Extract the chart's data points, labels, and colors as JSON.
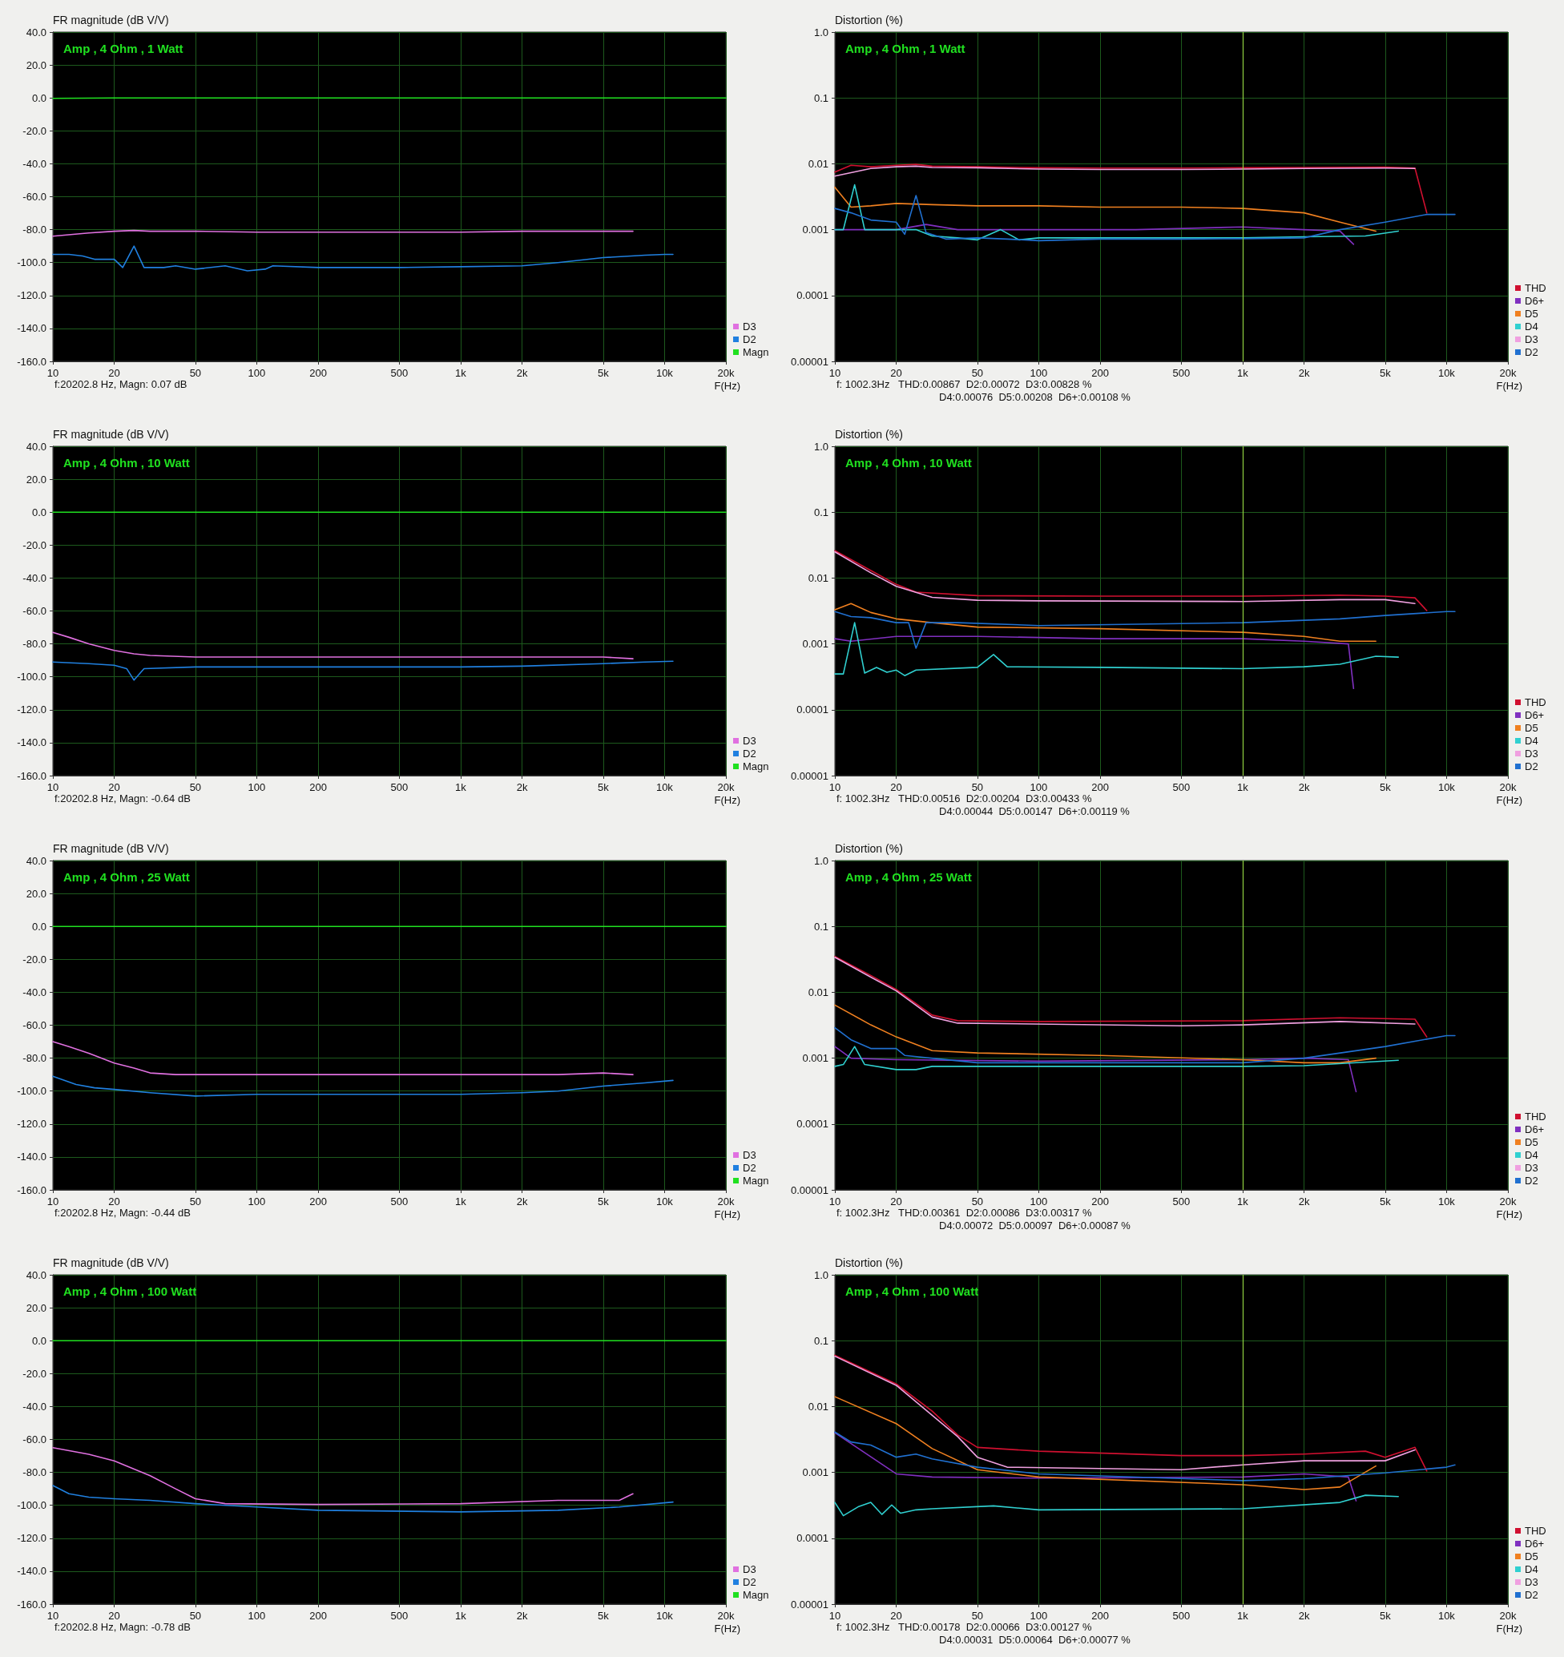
{
  "chart_data": [
    {
      "type": "line",
      "title": "Amp , 4 Ohm , 1 Watt",
      "ylabel": "FR magnitude (dB V/V)",
      "xlabel": "F(Hz)",
      "annotations": [
        "f:20202.8 Hz, Magn: 0.07 dB"
      ],
      "log": "x",
      "grid": true,
      "legend": "bottom right",
      "marker": "none",
      "line_style": "solid",
      "xlim": [
        10,
        20000
      ],
      "ylim": [
        -160,
        40
      ],
      "xticks": [
        10,
        20,
        50,
        100,
        200,
        500,
        {
          "value": 1000,
          "label": "1k"
        },
        {
          "value": 2000,
          "label": "2k"
        },
        {
          "value": 5000,
          "label": "5k"
        },
        {
          "value": 10000,
          "label": "10k"
        },
        {
          "value": 20000,
          "label": "20k"
        }
      ],
      "yticks": [
        {
          "value": 40,
          "label": "40.0"
        },
        {
          "value": 20,
          "label": "20.0"
        },
        {
          "value": 0,
          "label": "0.0"
        },
        {
          "value": -20,
          "label": "-20.0"
        },
        {
          "value": -40,
          "label": "-40.0"
        },
        {
          "value": -60,
          "label": "-60.0"
        },
        {
          "value": -80,
          "label": "-80.0"
        },
        {
          "value": -100,
          "label": "-100.0"
        },
        {
          "value": -120,
          "label": "-120.0"
        },
        {
          "value": -140,
          "label": "-140.0"
        },
        {
          "value": -160,
          "label": "-160.0"
        }
      ],
      "series": [
        {
          "name": "D3",
          "color": "#e070e0",
          "x": [
            10,
            15,
            20,
            25,
            30,
            50,
            100,
            200,
            500,
            1000,
            2000,
            5000,
            7000
          ],
          "values": [
            -84,
            -82,
            -81,
            -80.5,
            -81,
            -81,
            -81.5,
            -81.5,
            -81.5,
            -81.5,
            -81,
            -81,
            -81
          ]
        },
        {
          "name": "D2",
          "color": "#2080e0",
          "x": [
            10,
            12,
            14,
            16,
            20,
            22,
            25,
            28,
            35,
            40,
            50,
            70,
            90,
            110,
            120,
            200,
            500,
            1000,
            2000,
            3000,
            5000,
            8000,
            10000,
            11000
          ],
          "values": [
            -95,
            -95,
            -96,
            -98,
            -98,
            -103,
            -90,
            -103,
            -103,
            -102,
            -104,
            -102,
            -105,
            -104,
            -102,
            -103,
            -103,
            -102.5,
            -102,
            -100,
            -97,
            -95.5,
            -95,
            -95
          ]
        },
        {
          "name": "Magn",
          "color": "#20e020",
          "x": [
            10,
            20,
            100,
            1000,
            10000,
            20000
          ],
          "values": [
            -0.3,
            0,
            0,
            0,
            0,
            0
          ]
        }
      ]
    },
    {
      "type": "line",
      "title": "Amp , 4 Ohm , 1 Watt",
      "ylabel": "Distortion (%)",
      "xlabel": "F(Hz)",
      "annotations": [
        "f: 1002.3Hz   THD:0.00867  D2:0.00072  D3:0.00828 %",
        "D4:0.00076  D5:0.00208  D6+:0.00108 %"
      ],
      "log": "xy",
      "grid": true,
      "legend": "bottom right",
      "marker": "none",
      "line_style": "solid",
      "xlim": [
        10,
        20000
      ],
      "ylim": [
        1e-05,
        1
      ],
      "xticks": [
        10,
        20,
        50,
        100,
        200,
        500,
        {
          "value": 1000,
          "label": "1k"
        },
        {
          "value": 2000,
          "label": "2k"
        },
        {
          "value": 5000,
          "label": "5k"
        },
        {
          "value": 10000,
          "label": "10k"
        },
        {
          "value": 20000,
          "label": "20k"
        }
      ],
      "yticks": [
        {
          "value": 1,
          "label": "1.0"
        },
        0.1,
        0.01,
        0.001,
        0.0001,
        {
          "value": 1e-05,
          "label": "0.00001"
        }
      ],
      "ref_lines": [
        {
          "axis": "x",
          "value": 1000,
          "color": "#90d040"
        }
      ],
      "series": [
        {
          "name": "THD",
          "color": "#d01030",
          "x": [
            10,
            12,
            15,
            20,
            25,
            30,
            50,
            100,
            200,
            500,
            1000,
            2000,
            5000,
            7000,
            8000
          ],
          "values": [
            0.0075,
            0.0095,
            0.009,
            0.0095,
            0.0098,
            0.0092,
            0.009,
            0.0087,
            0.0086,
            0.0086,
            0.0087,
            0.0088,
            0.0089,
            0.0086,
            0.0018
          ]
        },
        {
          "name": "D6+",
          "color": "#8030c0",
          "x": [
            10,
            15,
            20,
            28,
            40,
            100,
            300,
            1000,
            2000,
            3000,
            3500
          ],
          "values": [
            0.001,
            0.001,
            0.001,
            0.0012,
            0.001,
            0.001,
            0.001,
            0.0011,
            0.001,
            0.00095,
            0.0006
          ]
        },
        {
          "name": "D5",
          "color": "#f08020",
          "x": [
            10,
            12,
            15,
            20,
            30,
            50,
            100,
            200,
            500,
            1000,
            2000,
            3000,
            4500
          ],
          "values": [
            0.0044,
            0.0022,
            0.0023,
            0.0025,
            0.0024,
            0.0023,
            0.0023,
            0.0022,
            0.0022,
            0.0021,
            0.0018,
            0.0013,
            0.00095
          ]
        },
        {
          "name": "D4",
          "color": "#30d0d0",
          "x": [
            10,
            11,
            12.5,
            14,
            20,
            22,
            25,
            30,
            40,
            50,
            65,
            80,
            100,
            200,
            500,
            1000,
            2000,
            4000,
            5800
          ],
          "values": [
            0.001,
            0.001,
            0.0048,
            0.001,
            0.001,
            0.001,
            0.001,
            0.0008,
            0.00075,
            0.0007,
            0.001,
            0.0007,
            0.00075,
            0.00075,
            0.00075,
            0.00075,
            0.00078,
            0.0008,
            0.00095
          ]
        },
        {
          "name": "D3",
          "color": "#f0a0e0",
          "x": [
            10,
            15,
            20,
            25,
            30,
            50,
            100,
            200,
            500,
            1000,
            2000,
            5000,
            7000
          ],
          "values": [
            0.0065,
            0.0085,
            0.009,
            0.0092,
            0.0088,
            0.0087,
            0.0083,
            0.0082,
            0.0082,
            0.0083,
            0.0085,
            0.0086,
            0.0085
          ]
        },
        {
          "name": "D2",
          "color": "#2070d0",
          "x": [
            10,
            12,
            15,
            20,
            22,
            25,
            28,
            35,
            50,
            70,
            100,
            200,
            500,
            1000,
            2000,
            3000,
            5000,
            8000,
            10000,
            11000
          ],
          "values": [
            0.0021,
            0.0018,
            0.0014,
            0.0013,
            0.00085,
            0.0033,
            0.0009,
            0.00072,
            0.00075,
            0.00072,
            0.00068,
            0.00072,
            0.00072,
            0.00073,
            0.00075,
            0.001,
            0.0013,
            0.0017,
            0.0017,
            0.0017
          ]
        }
      ]
    },
    {
      "type": "line",
      "title": "Amp , 4 Ohm , 10 Watt",
      "ylabel": "FR magnitude (dB V/V)",
      "xlabel": "F(Hz)",
      "annotations": [
        "f:20202.8 Hz, Magn: -0.64 dB"
      ],
      "log": "x",
      "grid": true,
      "legend": "bottom right",
      "marker": "none",
      "line_style": "solid",
      "xlim": [
        10,
        20000
      ],
      "ylim": [
        -160,
        40
      ],
      "xticks": [
        10,
        20,
        50,
        100,
        200,
        500,
        {
          "value": 1000,
          "label": "1k"
        },
        {
          "value": 2000,
          "label": "2k"
        },
        {
          "value": 5000,
          "label": "5k"
        },
        {
          "value": 10000,
          "label": "10k"
        },
        {
          "value": 20000,
          "label": "20k"
        }
      ],
      "yticks": [
        {
          "value": 40,
          "label": "40.0"
        },
        {
          "value": 20,
          "label": "20.0"
        },
        {
          "value": 0,
          "label": "0.0"
        },
        {
          "value": -20,
          "label": "-20.0"
        },
        {
          "value": -40,
          "label": "-40.0"
        },
        {
          "value": -60,
          "label": "-60.0"
        },
        {
          "value": -80,
          "label": "-80.0"
        },
        {
          "value": -100,
          "label": "-100.0"
        },
        {
          "value": -120,
          "label": "-120.0"
        },
        {
          "value": -140,
          "label": "-140.0"
        },
        {
          "value": -160,
          "label": "-160.0"
        }
      ],
      "series": [
        {
          "name": "D3",
          "color": "#e070e0",
          "x": [
            10,
            12,
            15,
            20,
            25,
            30,
            50,
            100,
            500,
            1000,
            2000,
            5000,
            7000
          ],
          "values": [
            -73,
            -76,
            -80,
            -84,
            -86,
            -87,
            -88,
            -88,
            -88,
            -88,
            -88,
            -88,
            -89
          ]
        },
        {
          "name": "D2",
          "color": "#2080e0",
          "x": [
            10,
            15,
            20,
            23,
            25,
            28,
            50,
            100,
            500,
            1000,
            2000,
            5000,
            8000,
            11000
          ],
          "values": [
            -91,
            -92,
            -93,
            -95,
            -102,
            -95,
            -94,
            -94,
            -94,
            -94,
            -93.5,
            -92,
            -91,
            -90.5
          ]
        },
        {
          "name": "Magn",
          "color": "#20e020",
          "x": [
            10,
            100,
            1000,
            10000,
            20000
          ],
          "values": [
            0,
            0,
            0,
            0,
            0
          ]
        }
      ]
    },
    {
      "type": "line",
      "title": "Amp , 4 Ohm , 10 Watt",
      "ylabel": "Distortion (%)",
      "xlabel": "F(Hz)",
      "annotations": [
        "f: 1002.3Hz   THD:0.00516  D2:0.00204  D3:0.00433 %",
        "D4:0.00044  D5:0.00147  D6+:0.00119 %"
      ],
      "log": "xy",
      "grid": true,
      "legend": "bottom right",
      "marker": "none",
      "line_style": "solid",
      "xlim": [
        10,
        20000
      ],
      "ylim": [
        1e-05,
        1
      ],
      "xticks": [
        10,
        20,
        50,
        100,
        200,
        500,
        {
          "value": 1000,
          "label": "1k"
        },
        {
          "value": 2000,
          "label": "2k"
        },
        {
          "value": 5000,
          "label": "5k"
        },
        {
          "value": 10000,
          "label": "10k"
        },
        {
          "value": 20000,
          "label": "20k"
        }
      ],
      "yticks": [
        {
          "value": 1,
          "label": "1.0"
        },
        0.1,
        0.01,
        0.001,
        0.0001,
        {
          "value": 1e-05,
          "label": "0.00001"
        }
      ],
      "ref_lines": [
        {
          "axis": "x",
          "value": 1000,
          "color": "#90d040"
        }
      ],
      "series": [
        {
          "name": "THD",
          "color": "#d01030",
          "x": [
            10,
            15,
            20,
            25,
            50,
            200,
            1000,
            3000,
            5000,
            7000,
            8000
          ],
          "values": [
            0.026,
            0.013,
            0.008,
            0.0061,
            0.0054,
            0.0053,
            0.0053,
            0.0055,
            0.0053,
            0.005,
            0.0032
          ]
        },
        {
          "name": "D6+",
          "color": "#8030c0",
          "x": [
            10,
            12,
            20,
            50,
            200,
            1000,
            2000,
            3300,
            3500
          ],
          "values": [
            0.0012,
            0.0011,
            0.0013,
            0.0013,
            0.0012,
            0.0012,
            0.0011,
            0.001,
            0.00021
          ]
        },
        {
          "name": "D5",
          "color": "#f08020",
          "x": [
            10,
            12,
            15,
            20,
            30,
            50,
            200,
            1000,
            2000,
            3000,
            4500
          ],
          "values": [
            0.0033,
            0.0041,
            0.003,
            0.0024,
            0.0021,
            0.0018,
            0.0017,
            0.0015,
            0.0013,
            0.0011,
            0.0011
          ]
        },
        {
          "name": "D4",
          "color": "#30d0d0",
          "x": [
            10,
            11,
            12.5,
            14,
            16,
            18,
            20,
            22,
            25,
            50,
            60,
            70,
            200,
            1000,
            2000,
            3000,
            4500,
            5800
          ],
          "values": [
            0.00035,
            0.00035,
            0.0021,
            0.00036,
            0.00044,
            0.00037,
            0.0004,
            0.00033,
            0.0004,
            0.00044,
            0.00069,
            0.00045,
            0.00044,
            0.00042,
            0.00045,
            0.00049,
            0.00065,
            0.00063
          ]
        },
        {
          "name": "D3",
          "color": "#f0a0e0",
          "x": [
            10,
            15,
            20,
            30,
            50,
            100,
            1000,
            3000,
            5000,
            7000
          ],
          "values": [
            0.025,
            0.012,
            0.0075,
            0.0051,
            0.0046,
            0.0045,
            0.0044,
            0.0047,
            0.0047,
            0.0041
          ]
        },
        {
          "name": "D2",
          "color": "#2070d0",
          "x": [
            10,
            12,
            15,
            20,
            23,
            25,
            28,
            40,
            100,
            1000,
            3000,
            5000,
            10000,
            11000
          ],
          "values": [
            0.0031,
            0.0026,
            0.0025,
            0.0021,
            0.0021,
            0.00086,
            0.0021,
            0.0021,
            0.0019,
            0.0021,
            0.0024,
            0.0027,
            0.0031,
            0.0031
          ]
        }
      ]
    },
    {
      "type": "line",
      "title": "Amp , 4 Ohm , 25 Watt",
      "ylabel": "FR magnitude (dB V/V)",
      "xlabel": "F(Hz)",
      "annotations": [
        "f:20202.8 Hz, Magn: -0.44 dB"
      ],
      "log": "x",
      "grid": true,
      "legend": "bottom right",
      "marker": "none",
      "line_style": "solid",
      "xlim": [
        10,
        20000
      ],
      "ylim": [
        -160,
        40
      ],
      "xticks": [
        10,
        20,
        50,
        100,
        200,
        500,
        {
          "value": 1000,
          "label": "1k"
        },
        {
          "value": 2000,
          "label": "2k"
        },
        {
          "value": 5000,
          "label": "5k"
        },
        {
          "value": 10000,
          "label": "10k"
        },
        {
          "value": 20000,
          "label": "20k"
        }
      ],
      "yticks": [
        {
          "value": 40,
          "label": "40.0"
        },
        {
          "value": 20,
          "label": "20.0"
        },
        {
          "value": 0,
          "label": "0.0"
        },
        {
          "value": -20,
          "label": "-20.0"
        },
        {
          "value": -40,
          "label": "-40.0"
        },
        {
          "value": -60,
          "label": "-60.0"
        },
        {
          "value": -80,
          "label": "-80.0"
        },
        {
          "value": -100,
          "label": "-100.0"
        },
        {
          "value": -120,
          "label": "-120.0"
        },
        {
          "value": -140,
          "label": "-140.0"
        },
        {
          "value": -160,
          "label": "-160.0"
        }
      ],
      "series": [
        {
          "name": "D3",
          "color": "#e070e0",
          "x": [
            10,
            12,
            15,
            20,
            25,
            30,
            40,
            100,
            1000,
            3000,
            5000,
            7000
          ],
          "values": [
            -70,
            -73,
            -77,
            -83,
            -86,
            -89,
            -90,
            -90,
            -90,
            -90,
            -89,
            -90
          ]
        },
        {
          "name": "D2",
          "color": "#2080e0",
          "x": [
            10,
            13,
            16,
            20,
            30,
            50,
            100,
            500,
            1000,
            2000,
            3000,
            5000,
            8000,
            11000
          ],
          "values": [
            -91,
            -96,
            -98,
            -99,
            -101,
            -103,
            -102,
            -102,
            -102,
            -101,
            -100,
            -97,
            -95,
            -93.5
          ]
        },
        {
          "name": "Magn",
          "color": "#20e020",
          "x": [
            10,
            100,
            1000,
            10000,
            20000
          ],
          "values": [
            0,
            0,
            0,
            0,
            0
          ]
        }
      ]
    },
    {
      "type": "line",
      "title": "Amp , 4 Ohm , 25 Watt",
      "ylabel": "Distortion (%)",
      "xlabel": "F(Hz)",
      "annotations": [
        "f: 1002.3Hz   THD:0.00361  D2:0.00086  D3:0.00317 %",
        "D4:0.00072  D5:0.00097  D6+:0.00087 %"
      ],
      "log": "xy",
      "grid": true,
      "legend": "bottom right",
      "marker": "none",
      "line_style": "solid",
      "xlim": [
        10,
        20000
      ],
      "ylim": [
        1e-05,
        1
      ],
      "xticks": [
        10,
        20,
        50,
        100,
        200,
        500,
        {
          "value": 1000,
          "label": "1k"
        },
        {
          "value": 2000,
          "label": "2k"
        },
        {
          "value": 5000,
          "label": "5k"
        },
        {
          "value": 10000,
          "label": "10k"
        },
        {
          "value": 20000,
          "label": "20k"
        }
      ],
      "yticks": [
        {
          "value": 1,
          "label": "1.0"
        },
        0.1,
        0.01,
        0.001,
        0.0001,
        {
          "value": 1e-05,
          "label": "0.00001"
        }
      ],
      "ref_lines": [
        {
          "axis": "x",
          "value": 1000,
          "color": "#90d040"
        }
      ],
      "series": [
        {
          "name": "THD",
          "color": "#d01030",
          "x": [
            10,
            15,
            20,
            30,
            40,
            100,
            1000,
            3000,
            7000,
            8000
          ],
          "values": [
            0.035,
            0.018,
            0.011,
            0.0045,
            0.0037,
            0.0036,
            0.0037,
            0.0041,
            0.0039,
            0.0021
          ]
        },
        {
          "name": "D6+",
          "color": "#8030c0",
          "x": [
            10,
            12,
            20,
            100,
            1000,
            2000,
            3300,
            3600
          ],
          "values": [
            0.0015,
            0.001,
            0.00095,
            0.0009,
            0.00095,
            0.001,
            0.00095,
            0.00031
          ]
        },
        {
          "name": "D5",
          "color": "#f08020",
          "x": [
            10,
            15,
            20,
            30,
            50,
            200,
            1000,
            2000,
            3000,
            4500
          ],
          "values": [
            0.0064,
            0.0032,
            0.0021,
            0.0013,
            0.0012,
            0.0011,
            0.00095,
            0.00085,
            0.00085,
            0.001
          ]
        },
        {
          "name": "D4",
          "color": "#30d0d0",
          "x": [
            10,
            11,
            12.5,
            14,
            20,
            25,
            30,
            100,
            1000,
            2000,
            5800
          ],
          "values": [
            0.00075,
            0.0008,
            0.0015,
            0.0008,
            0.00067,
            0.00067,
            0.00075,
            0.00075,
            0.00075,
            0.00077,
            0.00093
          ]
        },
        {
          "name": "D3",
          "color": "#f0a0e0",
          "x": [
            10,
            15,
            20,
            30,
            40,
            500,
            1000,
            3000,
            7000
          ],
          "values": [
            0.034,
            0.017,
            0.0105,
            0.0042,
            0.0034,
            0.0031,
            0.0032,
            0.0036,
            0.0033
          ]
        },
        {
          "name": "D2",
          "color": "#2070d0",
          "x": [
            10,
            12,
            15,
            20,
            22,
            50,
            1000,
            2000,
            5000,
            10000,
            11000
          ],
          "values": [
            0.0029,
            0.0019,
            0.0014,
            0.0014,
            0.0011,
            0.00085,
            0.00085,
            0.001,
            0.0015,
            0.0022,
            0.0022
          ]
        }
      ]
    },
    {
      "type": "line",
      "title": "Amp , 4 Ohm , 100 Watt",
      "ylabel": "FR magnitude (dB V/V)",
      "xlabel": "F(Hz)",
      "annotations": [
        "f:20202.8 Hz, Magn: -0.78 dB"
      ],
      "log": "x",
      "grid": true,
      "legend": "bottom right",
      "marker": "none",
      "line_style": "solid",
      "xlim": [
        10,
        20000
      ],
      "ylim": [
        -160,
        40
      ],
      "xticks": [
        10,
        20,
        50,
        100,
        200,
        500,
        {
          "value": 1000,
          "label": "1k"
        },
        {
          "value": 2000,
          "label": "2k"
        },
        {
          "value": 5000,
          "label": "5k"
        },
        {
          "value": 10000,
          "label": "10k"
        },
        {
          "value": 20000,
          "label": "20k"
        }
      ],
      "yticks": [
        {
          "value": 40,
          "label": "40.0"
        },
        {
          "value": 20,
          "label": "20.0"
        },
        {
          "value": 0,
          "label": "0.0"
        },
        {
          "value": -20,
          "label": "-20.0"
        },
        {
          "value": -40,
          "label": "-40.0"
        },
        {
          "value": -60,
          "label": "-60.0"
        },
        {
          "value": -80,
          "label": "-80.0"
        },
        {
          "value": -100,
          "label": "-100.0"
        },
        {
          "value": -120,
          "label": "-120.0"
        },
        {
          "value": -140,
          "label": "-140.0"
        },
        {
          "value": -160,
          "label": "-160.0"
        }
      ],
      "series": [
        {
          "name": "D3",
          "color": "#e070e0",
          "x": [
            10,
            15,
            20,
            30,
            40,
            50,
            70,
            200,
            1000,
            3000,
            6000,
            7000
          ],
          "values": [
            -65,
            -69,
            -73,
            -82,
            -90,
            -96,
            -99,
            -99.5,
            -99,
            -97,
            -97,
            -93
          ]
        },
        {
          "name": "D2",
          "color": "#2080e0",
          "x": [
            10,
            12,
            15,
            20,
            30,
            50,
            100,
            200,
            1000,
            3000,
            6000,
            11000
          ],
          "values": [
            -88,
            -93,
            -95,
            -96,
            -97,
            -99,
            -101,
            -103,
            -104,
            -103,
            -101,
            -98
          ]
        },
        {
          "name": "Magn",
          "color": "#20e020",
          "x": [
            10,
            100,
            1000,
            10000,
            20000
          ],
          "values": [
            0,
            0,
            0,
            0,
            0
          ]
        }
      ]
    },
    {
      "type": "line",
      "title": "Amp , 4 Ohm , 100 Watt",
      "ylabel": "Distortion (%)",
      "xlabel": "F(Hz)",
      "annotations": [
        "f: 1002.3Hz   THD:0.00178  D2:0.00066  D3:0.00127 %",
        "D4:0.00031  D5:0.00064  D6+:0.00077 %"
      ],
      "log": "xy",
      "grid": true,
      "legend": "bottom right",
      "marker": "none",
      "line_style": "solid",
      "xlim": [
        10,
        20000
      ],
      "ylim": [
        1e-05,
        1
      ],
      "xticks": [
        10,
        20,
        50,
        100,
        200,
        500,
        {
          "value": 1000,
          "label": "1k"
        },
        {
          "value": 2000,
          "label": "2k"
        },
        {
          "value": 5000,
          "label": "5k"
        },
        {
          "value": 10000,
          "label": "10k"
        },
        {
          "value": 20000,
          "label": "20k"
        }
      ],
      "yticks": [
        {
          "value": 1,
          "label": "1.0"
        },
        0.1,
        0.01,
        0.001,
        0.0001,
        {
          "value": 1e-05,
          "label": "0.00001"
        }
      ],
      "ref_lines": [
        {
          "axis": "x",
          "value": 1000,
          "color": "#90d040"
        }
      ],
      "series": [
        {
          "name": "THD",
          "color": "#d01030",
          "x": [
            10,
            20,
            30,
            40,
            50,
            100,
            500,
            1000,
            2000,
            4000,
            5000,
            7000,
            8000
          ],
          "values": [
            0.06,
            0.022,
            0.0085,
            0.0037,
            0.0024,
            0.0021,
            0.0018,
            0.0018,
            0.0019,
            0.0021,
            0.0017,
            0.0024,
            0.00105
          ]
        },
        {
          "name": "D6+",
          "color": "#8030c0",
          "x": [
            10,
            20,
            30,
            100,
            1000,
            2000,
            3300,
            3600
          ],
          "values": [
            0.004,
            0.00095,
            0.00085,
            0.00082,
            0.00085,
            0.00095,
            0.00085,
            0.00037
          ]
        },
        {
          "name": "D5",
          "color": "#f08020",
          "x": [
            10,
            20,
            30,
            50,
            100,
            1000,
            2000,
            3000,
            4500
          ],
          "values": [
            0.0141,
            0.0055,
            0.0023,
            0.0011,
            0.00085,
            0.00065,
            0.00055,
            0.0006,
            0.00125
          ]
        },
        {
          "name": "D4",
          "color": "#30d0d0",
          "x": [
            10,
            11,
            13,
            15,
            17,
            19,
            21,
            25,
            30,
            60,
            100,
            1000,
            3000,
            4000,
            5800
          ],
          "values": [
            0.00035,
            0.00022,
            0.0003,
            0.00035,
            0.00023,
            0.00032,
            0.00024,
            0.00027,
            0.00028,
            0.00031,
            0.00027,
            0.00028,
            0.00035,
            0.00045,
            0.00043
          ]
        },
        {
          "name": "D3",
          "color": "#f0a0e0",
          "x": [
            10,
            20,
            40,
            50,
            70,
            500,
            1000,
            2000,
            5000,
            7000
          ],
          "values": [
            0.058,
            0.021,
            0.0035,
            0.0017,
            0.0012,
            0.0011,
            0.0013,
            0.0015,
            0.0015,
            0.0022
          ]
        },
        {
          "name": "D2",
          "color": "#2070d0",
          "x": [
            10,
            12,
            15,
            20,
            25,
            30,
            50,
            100,
            1000,
            2000,
            5000,
            10000,
            11000
          ],
          "values": [
            0.0041,
            0.0029,
            0.0026,
            0.0017,
            0.0019,
            0.0016,
            0.0012,
            0.00095,
            0.00075,
            0.0008,
            0.00098,
            0.0012,
            0.0013
          ]
        }
      ]
    }
  ]
}
